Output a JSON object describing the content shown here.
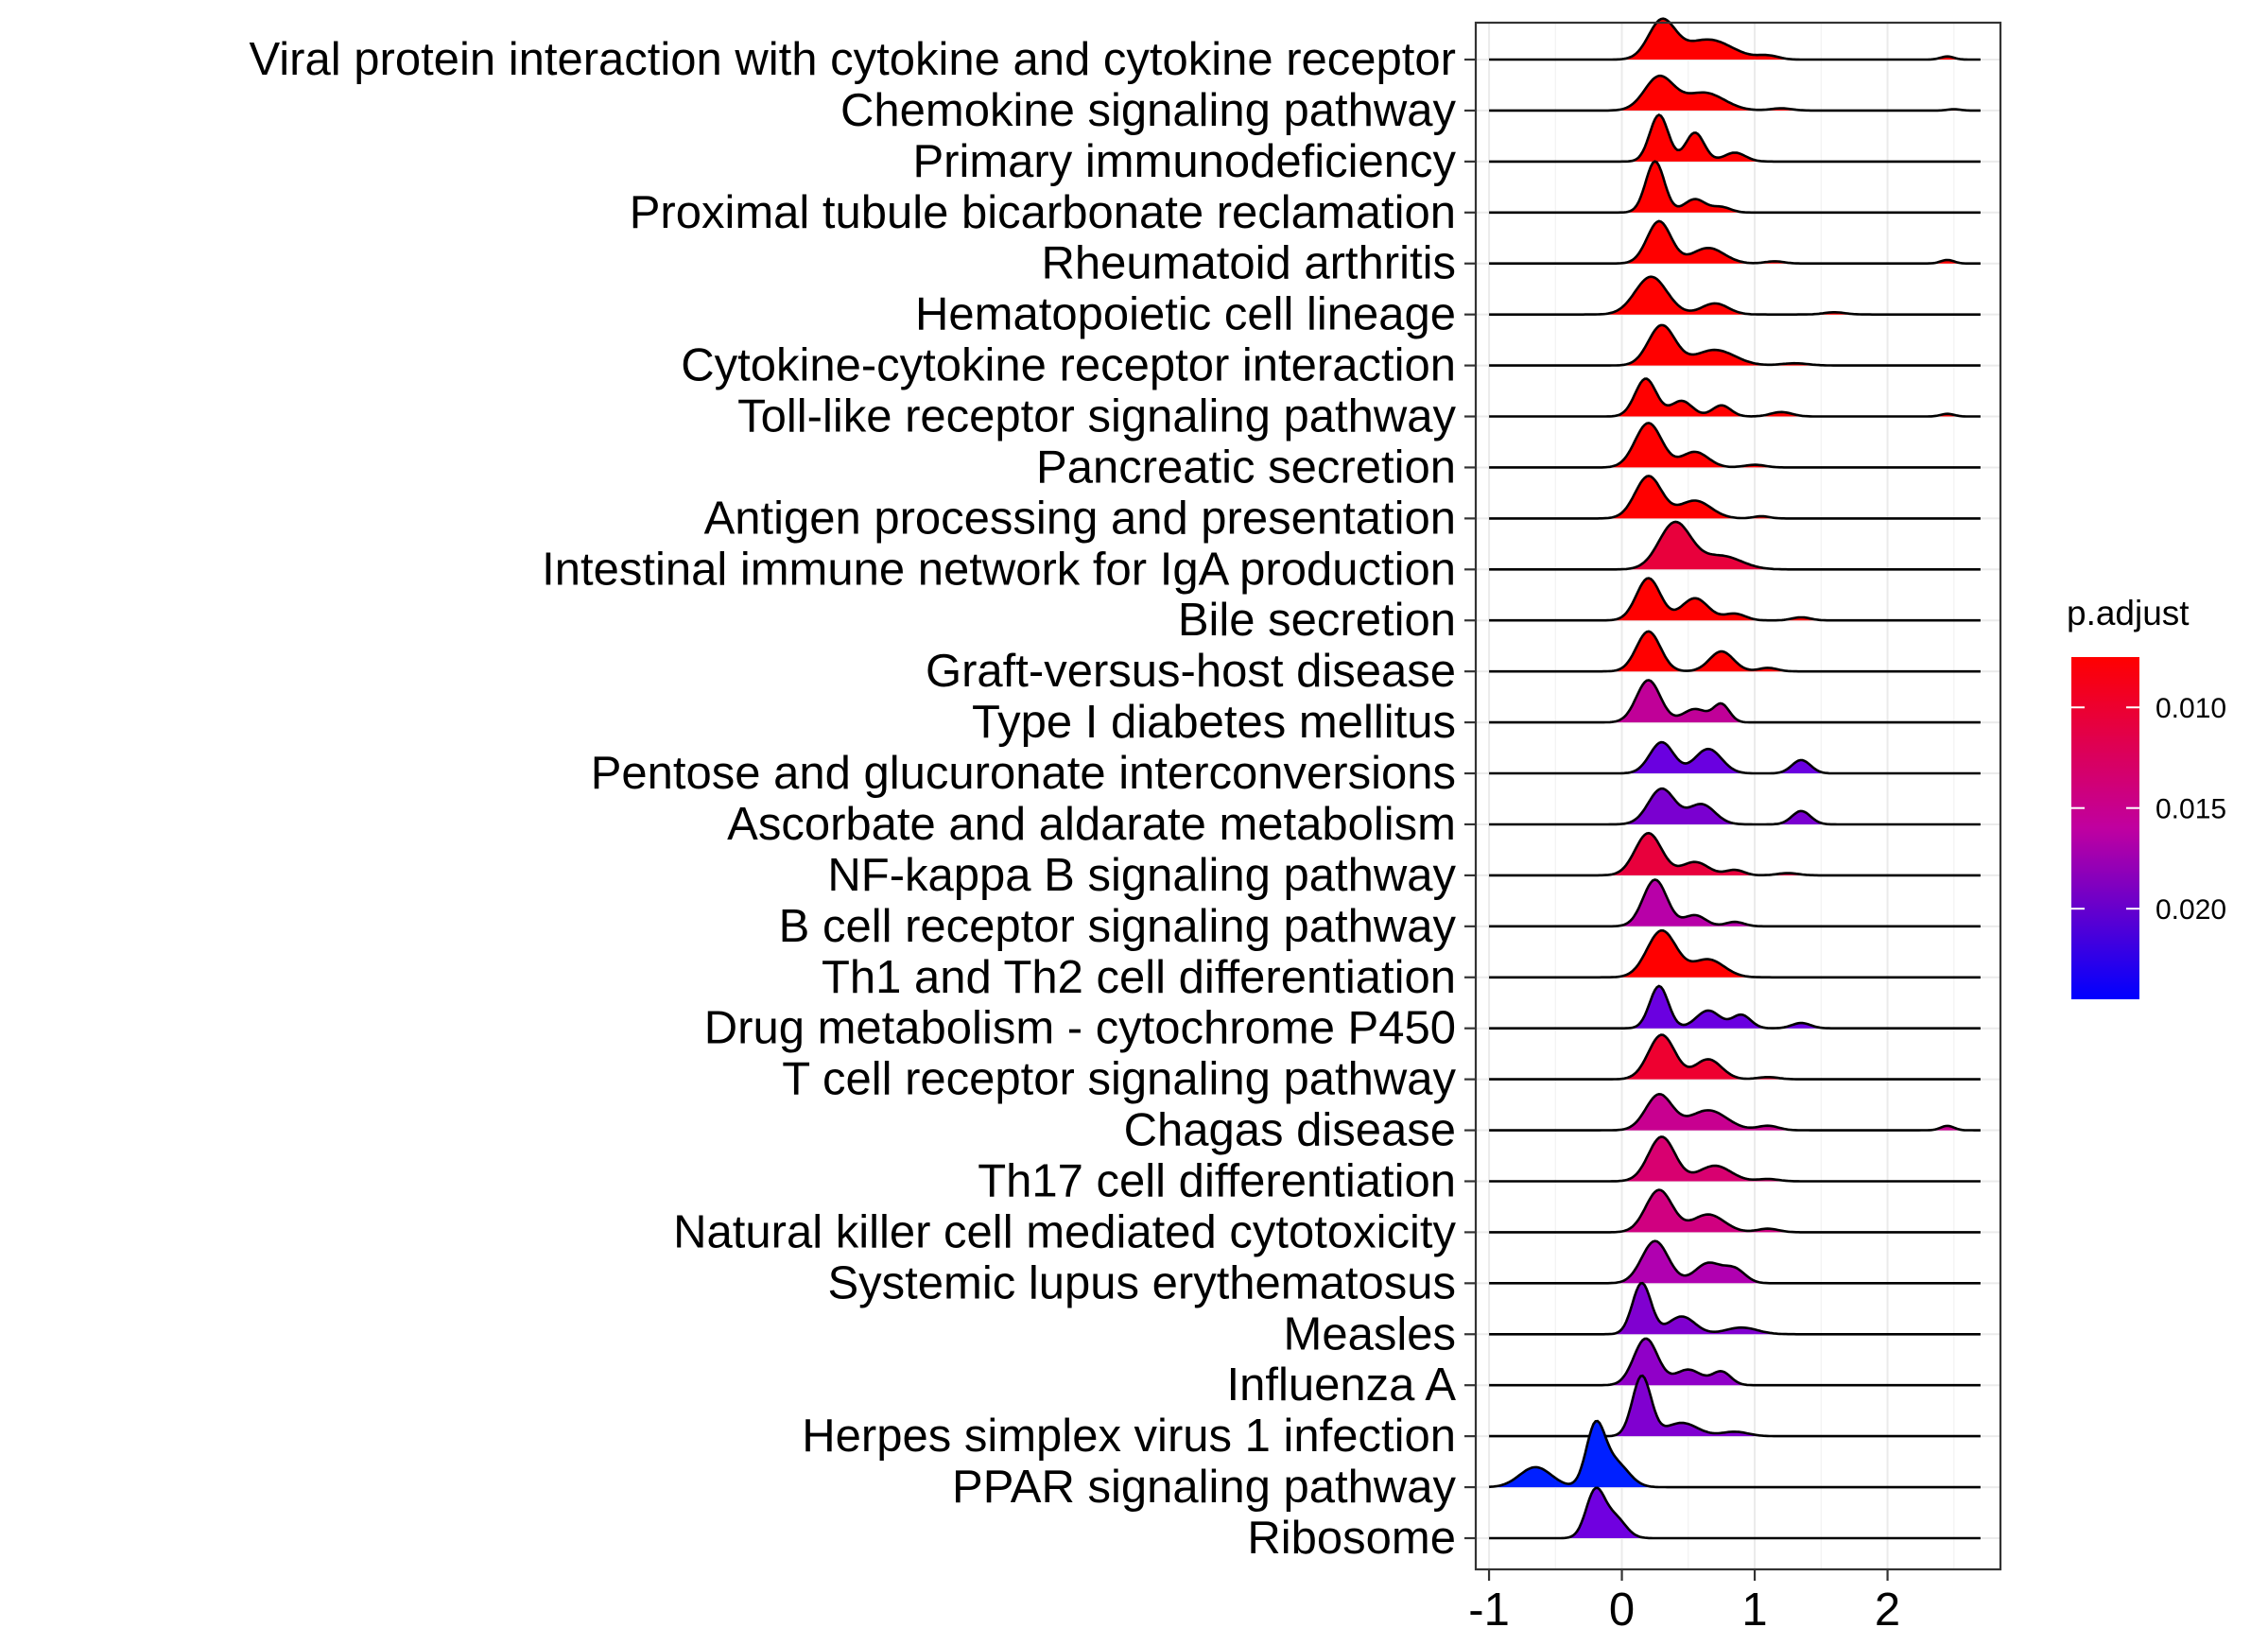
{
  "chart_data": {
    "type": "ridgeline",
    "title": "",
    "xlabel": "",
    "ylabel": "",
    "xlim": [
      -1.1,
      2.85
    ],
    "x_ticks": [
      -1,
      0,
      1,
      2
    ],
    "x_tick_labels": [
      "-1",
      "0",
      "1",
      "2"
    ],
    "grid": true,
    "legend": {
      "title": "p.adjust",
      "placement": "right",
      "range": [
        0.0075,
        0.0245
      ],
      "ticks": [
        0.01,
        0.015,
        0.02
      ],
      "tick_labels": [
        "0.010",
        "0.015",
        "0.020"
      ],
      "color_low": "#FF0000",
      "color_mid": "#C000A0",
      "color_high": "#0000FF"
    },
    "categories": [
      "Viral protein interaction with cytokine and cytokine receptor",
      "Chemokine signaling pathway",
      "Primary immunodeficiency",
      "Proximal tubule bicarbonate reclamation",
      "Rheumatoid arthritis",
      "Hematopoietic cell lineage",
      "Cytokine-cytokine receptor interaction",
      "Toll-like receptor signaling pathway",
      "Pancreatic secretion",
      "Antigen processing and presentation",
      "Intestinal immune network for IgA production",
      "Bile secretion",
      "Graft-versus-host disease",
      "Type I diabetes mellitus",
      "Pentose and glucuronate interconversions",
      "Ascorbate and aldarate metabolism",
      "NF-kappa B signaling pathway",
      "B cell receptor signaling pathway",
      "Th1 and Th2 cell differentiation",
      "Drug metabolism - cytochrome P450",
      "T cell receptor signaling pathway",
      "Chagas disease",
      "Th17 cell differentiation",
      "Natural killer cell mediated cytotoxicity",
      "Systemic lupus erythematosus",
      "Measles",
      "Influenza A",
      "Herpes simplex virus 1 infection",
      "PPAR signaling pathway",
      "Ribosome"
    ],
    "series": [
      {
        "color": "#FF0000",
        "p_adjust": 0.0085,
        "xmin": -1.0,
        "xmax": 2.7,
        "peaks": [
          [
            0.3,
            0.1,
            0.85
          ],
          [
            0.65,
            0.18,
            0.45
          ],
          [
            1.1,
            0.08,
            0.08
          ],
          [
            2.45,
            0.05,
            0.07
          ]
        ]
      },
      {
        "color": "#FF0000",
        "p_adjust": 0.0085,
        "xmin": -1.0,
        "xmax": 2.7,
        "peaks": [
          [
            0.28,
            0.11,
            0.75
          ],
          [
            0.62,
            0.15,
            0.4
          ],
          [
            1.2,
            0.08,
            0.05
          ],
          [
            2.5,
            0.05,
            0.03
          ]
        ]
      },
      {
        "color": "#FF0000",
        "p_adjust": 0.0085,
        "xmin": -1.0,
        "xmax": 2.7,
        "peaks": [
          [
            0.28,
            0.07,
            1.05
          ],
          [
            0.55,
            0.07,
            0.65
          ],
          [
            0.85,
            0.08,
            0.2
          ]
        ]
      },
      {
        "color": "#FF0000",
        "p_adjust": 0.0085,
        "xmin": -1.0,
        "xmax": 2.7,
        "peaks": [
          [
            0.25,
            0.07,
            1.15
          ],
          [
            0.55,
            0.08,
            0.3
          ],
          [
            0.75,
            0.07,
            0.12
          ]
        ]
      },
      {
        "color": "#FF0000",
        "p_adjust": 0.0085,
        "xmin": -1.0,
        "xmax": 2.7,
        "peaks": [
          [
            0.28,
            0.09,
            0.95
          ],
          [
            0.65,
            0.12,
            0.35
          ],
          [
            1.15,
            0.07,
            0.05
          ],
          [
            2.45,
            0.05,
            0.08
          ]
        ]
      },
      {
        "color": "#FF0000",
        "p_adjust": 0.0085,
        "xmin": -1.0,
        "xmax": 2.7,
        "peaks": [
          [
            0.22,
            0.12,
            0.85
          ],
          [
            0.7,
            0.1,
            0.25
          ],
          [
            1.6,
            0.08,
            0.05
          ]
        ]
      },
      {
        "color": "#FF0000",
        "p_adjust": 0.0085,
        "xmin": -1.0,
        "xmax": 2.7,
        "peaks": [
          [
            0.3,
            0.1,
            0.9
          ],
          [
            0.7,
            0.15,
            0.35
          ],
          [
            1.3,
            0.1,
            0.05
          ]
        ]
      },
      {
        "color": "#FF0000",
        "p_adjust": 0.0085,
        "xmin": -1.0,
        "xmax": 2.7,
        "peaks": [
          [
            0.18,
            0.08,
            0.85
          ],
          [
            0.45,
            0.08,
            0.35
          ],
          [
            0.75,
            0.07,
            0.25
          ],
          [
            1.2,
            0.08,
            0.1
          ],
          [
            2.45,
            0.05,
            0.06
          ]
        ]
      },
      {
        "color": "#FF0000",
        "p_adjust": 0.0085,
        "xmin": -1.0,
        "xmax": 2.7,
        "peaks": [
          [
            0.2,
            0.1,
            1.0
          ],
          [
            0.55,
            0.1,
            0.35
          ],
          [
            1.0,
            0.08,
            0.06
          ]
        ]
      },
      {
        "color": "#FF0000",
        "p_adjust": 0.0085,
        "xmin": -1.0,
        "xmax": 2.7,
        "peaks": [
          [
            0.2,
            0.1,
            0.95
          ],
          [
            0.55,
            0.12,
            0.4
          ],
          [
            1.05,
            0.06,
            0.05
          ]
        ]
      },
      {
        "color": "#E8003C",
        "p_adjust": 0.011,
        "xmin": -1.0,
        "xmax": 2.7,
        "peaks": [
          [
            0.4,
            0.12,
            1.05
          ],
          [
            0.75,
            0.15,
            0.3
          ]
        ]
      },
      {
        "color": "#FF0000",
        "p_adjust": 0.0085,
        "xmin": -1.0,
        "xmax": 2.7,
        "peaks": [
          [
            0.2,
            0.09,
            0.95
          ],
          [
            0.55,
            0.1,
            0.5
          ],
          [
            0.85,
            0.08,
            0.15
          ],
          [
            1.35,
            0.07,
            0.07
          ]
        ]
      },
      {
        "color": "#FF0000",
        "p_adjust": 0.0085,
        "xmin": -1.0,
        "xmax": 2.7,
        "peaks": [
          [
            0.2,
            0.09,
            0.9
          ],
          [
            0.75,
            0.09,
            0.45
          ],
          [
            1.1,
            0.07,
            0.08
          ]
        ]
      },
      {
        "color": "#C00098",
        "p_adjust": 0.017,
        "xmin": -1.0,
        "xmax": 2.7,
        "peaks": [
          [
            0.2,
            0.09,
            0.95
          ],
          [
            0.55,
            0.09,
            0.3
          ],
          [
            0.75,
            0.06,
            0.4
          ]
        ]
      },
      {
        "color": "#6A00E0",
        "p_adjust": 0.0215,
        "xmin": -1.0,
        "xmax": 2.7,
        "peaks": [
          [
            0.3,
            0.09,
            0.7
          ],
          [
            0.65,
            0.1,
            0.55
          ],
          [
            1.35,
            0.07,
            0.3
          ]
        ]
      },
      {
        "color": "#7A00D0",
        "p_adjust": 0.021,
        "xmin": -1.0,
        "xmax": 2.7,
        "peaks": [
          [
            0.3,
            0.1,
            0.8
          ],
          [
            0.6,
            0.1,
            0.45
          ],
          [
            1.35,
            0.07,
            0.3
          ]
        ]
      },
      {
        "color": "#E8003C",
        "p_adjust": 0.011,
        "xmin": -1.0,
        "xmax": 2.7,
        "peaks": [
          [
            0.2,
            0.1,
            0.95
          ],
          [
            0.55,
            0.1,
            0.3
          ],
          [
            0.85,
            0.07,
            0.12
          ],
          [
            1.25,
            0.08,
            0.05
          ]
        ]
      },
      {
        "color": "#B800A8",
        "p_adjust": 0.018,
        "xmin": -1.0,
        "xmax": 2.7,
        "peaks": [
          [
            0.25,
            0.09,
            1.05
          ],
          [
            0.55,
            0.08,
            0.25
          ],
          [
            0.85,
            0.07,
            0.1
          ]
        ]
      },
      {
        "color": "#FF0000",
        "p_adjust": 0.0085,
        "xmin": -1.0,
        "xmax": 2.7,
        "peaks": [
          [
            0.3,
            0.11,
            1.05
          ],
          [
            0.65,
            0.12,
            0.4
          ]
        ]
      },
      {
        "color": "#6A00E0",
        "p_adjust": 0.0215,
        "xmin": -1.0,
        "xmax": 2.7,
        "peaks": [
          [
            0.28,
            0.07,
            0.95
          ],
          [
            0.65,
            0.09,
            0.4
          ],
          [
            0.9,
            0.07,
            0.3
          ],
          [
            1.35,
            0.07,
            0.12
          ]
        ]
      },
      {
        "color": "#EE0030",
        "p_adjust": 0.0105,
        "xmin": -1.0,
        "xmax": 2.7,
        "peaks": [
          [
            0.3,
            0.1,
            1.0
          ],
          [
            0.65,
            0.1,
            0.45
          ],
          [
            1.1,
            0.08,
            0.05
          ]
        ]
      },
      {
        "color": "#C80090",
        "p_adjust": 0.0165,
        "xmin": -1.0,
        "xmax": 2.7,
        "peaks": [
          [
            0.28,
            0.1,
            0.8
          ],
          [
            0.65,
            0.14,
            0.45
          ],
          [
            1.1,
            0.08,
            0.1
          ],
          [
            2.45,
            0.05,
            0.1
          ]
        ]
      },
      {
        "color": "#D80070",
        "p_adjust": 0.014,
        "xmin": -1.0,
        "xmax": 2.7,
        "peaks": [
          [
            0.3,
            0.1,
            1.0
          ],
          [
            0.7,
            0.12,
            0.35
          ],
          [
            1.1,
            0.08,
            0.05
          ]
        ]
      },
      {
        "color": "#D00080",
        "p_adjust": 0.015,
        "xmin": -1.0,
        "xmax": 2.7,
        "peaks": [
          [
            0.28,
            0.1,
            0.95
          ],
          [
            0.65,
            0.12,
            0.4
          ],
          [
            1.1,
            0.08,
            0.08
          ]
        ]
      },
      {
        "color": "#B000B0",
        "p_adjust": 0.0185,
        "xmin": -1.0,
        "xmax": 2.7,
        "peaks": [
          [
            0.25,
            0.1,
            0.95
          ],
          [
            0.65,
            0.1,
            0.45
          ],
          [
            0.85,
            0.08,
            0.3
          ]
        ]
      },
      {
        "color": "#8000D0",
        "p_adjust": 0.0205,
        "xmin": -1.0,
        "xmax": 2.7,
        "peaks": [
          [
            0.15,
            0.07,
            1.15
          ],
          [
            0.45,
            0.1,
            0.4
          ],
          [
            0.9,
            0.12,
            0.15
          ]
        ]
      },
      {
        "color": "#9000C8",
        "p_adjust": 0.02,
        "xmin": -1.0,
        "xmax": 2.7,
        "peaks": [
          [
            0.18,
            0.09,
            1.05
          ],
          [
            0.5,
            0.1,
            0.35
          ],
          [
            0.75,
            0.07,
            0.3
          ]
        ]
      },
      {
        "color": "#8000D0",
        "p_adjust": 0.0205,
        "xmin": -1.0,
        "xmax": 2.7,
        "peaks": [
          [
            0.15,
            0.07,
            1.35
          ],
          [
            0.45,
            0.12,
            0.3
          ],
          [
            0.85,
            0.1,
            0.1
          ]
        ]
      },
      {
        "color": "#0020FF",
        "p_adjust": 0.024,
        "xmin": -1.0,
        "xmax": 2.7,
        "peaks": [
          [
            -0.65,
            0.12,
            0.45
          ],
          [
            -0.2,
            0.07,
            1.3
          ],
          [
            -0.05,
            0.1,
            0.55
          ]
        ]
      },
      {
        "color": "#7000E0",
        "p_adjust": 0.0212,
        "xmin": -1.0,
        "xmax": 2.7,
        "peaks": [
          [
            -0.2,
            0.07,
            1.05
          ],
          [
            -0.05,
            0.08,
            0.45
          ]
        ]
      }
    ]
  }
}
